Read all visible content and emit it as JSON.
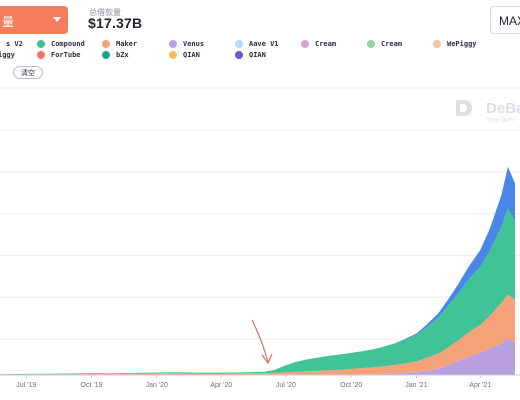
{
  "header": {
    "dropdown_label": "量",
    "metric_label": "总借款量",
    "metric_value": "$17.37B",
    "range_button": "MAX"
  },
  "legend": {
    "clear_label": "清空",
    "items": [
      {
        "label": "s V2",
        "color": "#4a86e8"
      },
      {
        "label": "Compound",
        "color": "#3fc397"
      },
      {
        "label": "Maker",
        "color": "#f4a279"
      },
      {
        "label": "Venus",
        "color": "#b79fe0"
      },
      {
        "label": "Aave V1",
        "color": "#b7d9f7"
      },
      {
        "label": "Cream",
        "color": "#d9a1d9"
      },
      {
        "label": "Cream",
        "color": "#8fd3a8"
      },
      {
        "label": "WePiggy",
        "color": "#f4c4a8"
      },
      {
        "label": "iggy",
        "color": "#e86a8f"
      },
      {
        "label": "ForTube",
        "color": "#ee7766"
      },
      {
        "label": "bZx",
        "color": "#17a589"
      },
      {
        "label": "QIAN",
        "color": "#f2c35c"
      },
      {
        "label": "QIAN",
        "color": "#6e56cf"
      }
    ]
  },
  "watermark": {
    "name": "DeBa",
    "tagline": "Your DeFi"
  },
  "chart_data": {
    "type": "area",
    "stacked": true,
    "x_tick_labels": [
      "Jul '19",
      "Oct '19",
      "Jan '20",
      "Apr '20",
      "Jul '20",
      "Oct '20",
      "Jan '21",
      "Apr '21"
    ],
    "x": [
      "2019-05-25",
      "2019-07-01",
      "2019-08-01",
      "2019-09-01",
      "2019-10-01",
      "2019-11-01",
      "2019-12-01",
      "2020-01-01",
      "2020-02-01",
      "2020-03-01",
      "2020-04-01",
      "2020-05-01",
      "2020-06-01",
      "2020-06-15",
      "2020-07-01",
      "2020-07-15",
      "2020-08-01",
      "2020-08-15",
      "2020-09-01",
      "2020-09-15",
      "2020-10-01",
      "2020-10-15",
      "2020-11-01",
      "2020-11-15",
      "2020-12-01",
      "2020-12-15",
      "2021-01-01",
      "2021-01-15",
      "2021-02-01",
      "2021-02-15",
      "2021-03-01",
      "2021-03-15",
      "2021-04-01",
      "2021-04-15",
      "2021-05-01",
      "2021-05-10",
      "2021-05-20"
    ],
    "y_gridlines": 7,
    "grid": true,
    "series": [
      {
        "name": "Venus",
        "color": "#b79fe0",
        "values": [
          0,
          0,
          0,
          0,
          0,
          0,
          0,
          0,
          0,
          0,
          0,
          0,
          0,
          0,
          0,
          0,
          0,
          0,
          0,
          0,
          0.02,
          0.04,
          0.06,
          0.08,
          0.1,
          0.13,
          0.18,
          0.28,
          0.45,
          0.7,
          1.0,
          1.3,
          1.6,
          1.9,
          2.3,
          2.6,
          2.4
        ]
      },
      {
        "name": "Maker",
        "color": "#f4a279",
        "values": [
          0.02,
          0.04,
          0.05,
          0.06,
          0.07,
          0.08,
          0.1,
          0.12,
          0.13,
          0.11,
          0.11,
          0.12,
          0.14,
          0.16,
          0.2,
          0.24,
          0.28,
          0.31,
          0.34,
          0.38,
          0.42,
          0.46,
          0.5,
          0.55,
          0.62,
          0.7,
          0.8,
          0.95,
          1.1,
          1.3,
          1.5,
          1.75,
          2.0,
          2.4,
          2.9,
          3.2,
          3.0
        ]
      },
      {
        "name": "Compound",
        "color": "#3fc397",
        "values": [
          0.03,
          0.04,
          0.04,
          0.05,
          0.05,
          0.05,
          0.05,
          0.06,
          0.07,
          0.06,
          0.06,
          0.07,
          0.1,
          0.2,
          0.5,
          0.7,
          0.85,
          0.95,
          1.05,
          1.1,
          1.15,
          1.2,
          1.3,
          1.4,
          1.55,
          1.7,
          1.9,
          2.2,
          2.6,
          3.0,
          3.4,
          3.8,
          4.2,
          4.7,
          5.5,
          6.2,
          5.7
        ]
      },
      {
        "name": "s V2",
        "color": "#4a86e8",
        "values": [
          0,
          0,
          0,
          0,
          0,
          0,
          0,
          0,
          0,
          0,
          0,
          0,
          0,
          0,
          0,
          0,
          0,
          0,
          0,
          0,
          0,
          0,
          0,
          0,
          0,
          0.05,
          0.1,
          0.18,
          0.3,
          0.45,
          0.65,
          0.9,
          1.2,
          1.6,
          2.3,
          3.0,
          2.7
        ]
      }
    ]
  }
}
